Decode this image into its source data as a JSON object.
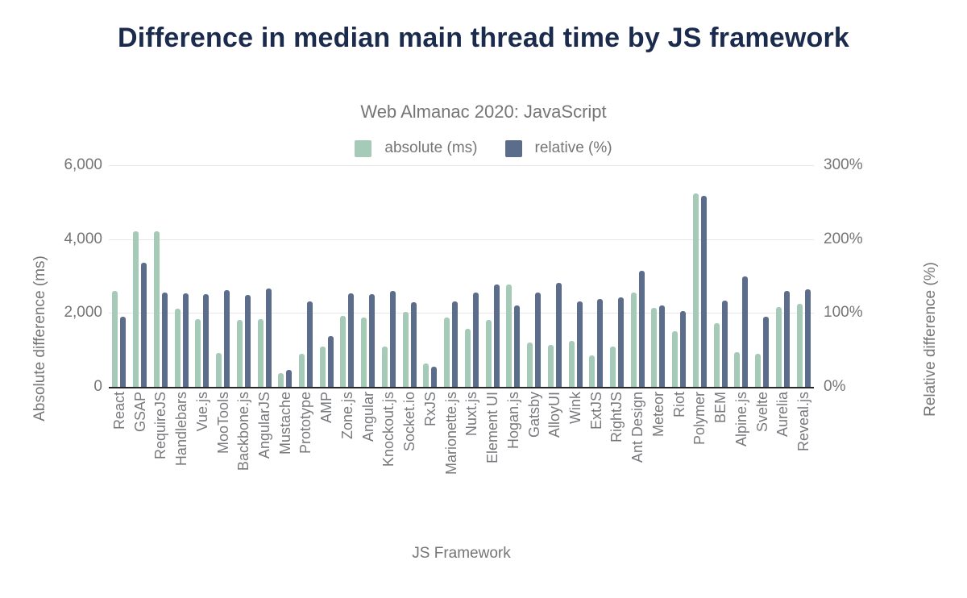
{
  "chart_data": {
    "type": "bar",
    "title": "Difference in median main thread time by JS framework",
    "subtitle": "Web Almanac 2020: JavaScript",
    "xlabel": "JS Framework",
    "ylabel_left": "Absolute difference (ms)",
    "ylabel_right": "Relative difference (%)",
    "legend_position": "top",
    "grid": true,
    "axis_left": {
      "min": 0,
      "max": 6000,
      "ticks": [
        "6,000",
        "4,000",
        "2,000",
        "0"
      ]
    },
    "axis_right": {
      "min": 0,
      "max": 300,
      "ticks": [
        "300%",
        "200%",
        "100%",
        "0%"
      ]
    },
    "categories": [
      "React",
      "GSAP",
      "RequireJS",
      "Handlebars",
      "Vue.js",
      "MooTools",
      "Backbone.js",
      "AngularJS",
      "Mustache",
      "Prototype",
      "AMP",
      "Zone.js",
      "Angular",
      "Knockout.js",
      "Socket.io",
      "RxJS",
      "Marionette.js",
      "Nuxt.js",
      "Element UI",
      "Hogan.js",
      "Gatsby",
      "AlloyUI",
      "Wink",
      "ExtJS",
      "RightJS",
      "Ant Design",
      "Meteor",
      "Riot",
      "Polymer",
      "BEM",
      "Alpine.js",
      "Svelte",
      "Aurelia",
      "Reveal.js"
    ],
    "series": [
      {
        "name": "absolute (ms)",
        "axis": "left",
        "color": "#a6cab8",
        "values": [
          2600,
          4200,
          4210,
          2120,
          1830,
          910,
          1820,
          1830,
          380,
          900,
          1100,
          1910,
          1880,
          1080,
          2020,
          640,
          1870,
          1580,
          1820,
          2770,
          1210,
          1130,
          1250,
          860,
          1090,
          2550,
          2140,
          1510,
          5240,
          1720,
          940,
          900,
          2160,
          2240
        ]
      },
      {
        "name": "relative (%)",
        "axis": "right",
        "color": "#5c6d8c",
        "values": [
          95,
          168,
          128,
          126,
          125,
          131,
          124,
          133,
          23,
          116,
          69,
          127,
          125,
          130,
          115,
          27,
          116,
          128,
          139,
          110,
          128,
          141,
          116,
          119,
          121,
          157,
          110,
          102,
          258,
          117,
          149,
          95,
          130,
          132
        ]
      }
    ]
  },
  "style": {
    "title_color": "#1b2b4d",
    "text_gray": "#757575",
    "gridline_color": "#e7e7e7",
    "axisline_color": "#26272a",
    "background": "#ffffff"
  }
}
